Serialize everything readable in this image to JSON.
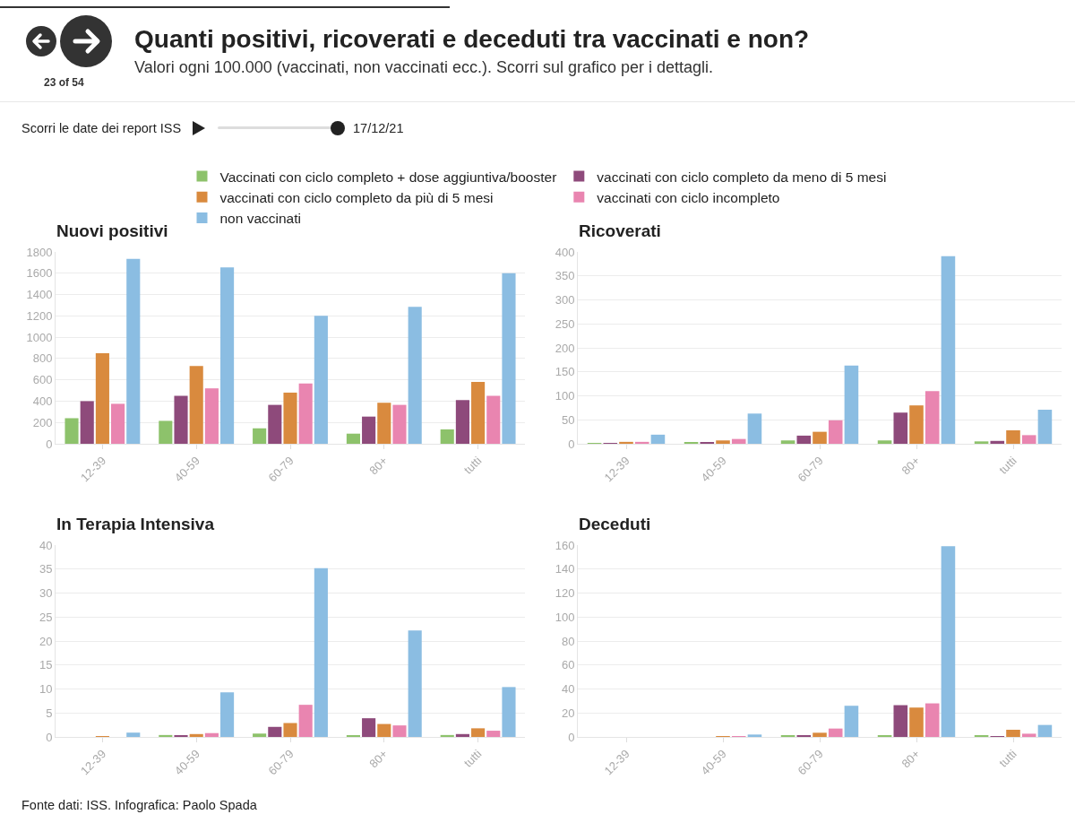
{
  "chart_data": [
    {
      "type": "bar",
      "title": "Nuovi positivi",
      "annotations": [
        "Quanti positivi, ricoverati e deceduti tra vaccinati e non?",
        "Valori ogni 100.000 (vaccinati, non vaccinati ecc.). Scorri sul grafico per i dettagli.",
        "23 of 54",
        "Scorri le date dei report ISS",
        "17/12/21",
        "Fonte dati: ISS. Infografica: Paolo Spada"
      ],
      "categories": [
        "12-39",
        "40-59",
        "60-79",
        "80+",
        "tutti"
      ],
      "series": [
        {
          "name": "Vaccinati con ciclo completo + dose aggiuntiva/booster",
          "color": "#8dc26b",
          "values": [
            240,
            215,
            145,
            95,
            135
          ]
        },
        {
          "name": "vaccinati con ciclo completo da meno di 5 mesi",
          "color": "#8e4a7b",
          "values": [
            400,
            450,
            365,
            255,
            410
          ]
        },
        {
          "name": "vaccinati con ciclo completo da più di 5 mesi",
          "color": "#d98a3e",
          "values": [
            850,
            730,
            480,
            385,
            580
          ]
        },
        {
          "name": "vaccinati con ciclo incompleto",
          "color": "#e985b0",
          "values": [
            375,
            520,
            565,
            365,
            450
          ]
        },
        {
          "name": "non vaccinati",
          "color": "#8bbde2",
          "values": [
            1735,
            1655,
            1200,
            1285,
            1600
          ]
        }
      ],
      "ylim": [
        0,
        1800
      ],
      "yticks": [
        0,
        200,
        400,
        600,
        800,
        1000,
        1200,
        1400,
        1600,
        1800
      ],
      "grid": "y",
      "legend": "top"
    },
    {
      "type": "bar",
      "title": "Ricoverati",
      "categories": [
        "12-39",
        "40-59",
        "60-79",
        "80+",
        "tutti"
      ],
      "series": [
        {
          "color": "#8dc26b",
          "values": [
            1,
            3,
            7,
            7,
            5
          ]
        },
        {
          "color": "#8e4a7b",
          "values": [
            1,
            3,
            17,
            65,
            6
          ]
        },
        {
          "color": "#d98a3e",
          "values": [
            4,
            7,
            25,
            80,
            28
          ]
        },
        {
          "color": "#e985b0",
          "values": [
            4,
            10,
            49,
            110,
            18
          ]
        },
        {
          "color": "#8bbde2",
          "values": [
            19,
            63,
            163,
            391,
            71
          ]
        }
      ],
      "ylim": [
        0,
        400
      ],
      "yticks": [
        0,
        50,
        100,
        150,
        200,
        250,
        300,
        350,
        400
      ],
      "grid": "y"
    },
    {
      "type": "bar",
      "title": "In Terapia Intensiva",
      "categories": [
        "12-39",
        "40-59",
        "60-79",
        "80+",
        "tutti"
      ],
      "series": [
        {
          "color": "#8dc26b",
          "values": [
            0,
            0.4,
            0.7,
            0.3,
            0.4
          ]
        },
        {
          "color": "#8e4a7b",
          "values": [
            0,
            0.2,
            2.1,
            3.9,
            0.6
          ]
        },
        {
          "color": "#d98a3e",
          "values": [
            0.1,
            0.6,
            2.9,
            2.7,
            1.8
          ]
        },
        {
          "color": "#e985b0",
          "values": [
            0,
            0.8,
            6.7,
            2.4,
            1.3
          ]
        },
        {
          "color": "#8bbde2",
          "values": [
            0.9,
            9.3,
            35.2,
            22.2,
            10.4
          ]
        }
      ],
      "ylim": [
        0,
        40
      ],
      "yticks": [
        0,
        5,
        10,
        15,
        20,
        25,
        30,
        35,
        40
      ],
      "grid": "y"
    },
    {
      "type": "bar",
      "title": "Deceduti",
      "categories": [
        "12-39",
        "40-59",
        "60-79",
        "80+",
        "tutti"
      ],
      "series": [
        {
          "color": "#8dc26b",
          "values": [
            0,
            0,
            1,
            1.3,
            0.8
          ]
        },
        {
          "color": "#8e4a7b",
          "values": [
            0,
            0,
            1.5,
            26.5,
            0.7
          ]
        },
        {
          "color": "#d98a3e",
          "values": [
            0,
            0.2,
            3.5,
            24.5,
            6
          ]
        },
        {
          "color": "#e985b0",
          "values": [
            0,
            0.5,
            7,
            28,
            2.7
          ]
        },
        {
          "color": "#8bbde2",
          "values": [
            0,
            2,
            26,
            159,
            10
          ]
        }
      ],
      "ylim": [
        0,
        160
      ],
      "yticks": [
        0,
        20,
        40,
        60,
        80,
        100,
        120,
        140,
        160
      ],
      "grid": "y"
    }
  ]
}
